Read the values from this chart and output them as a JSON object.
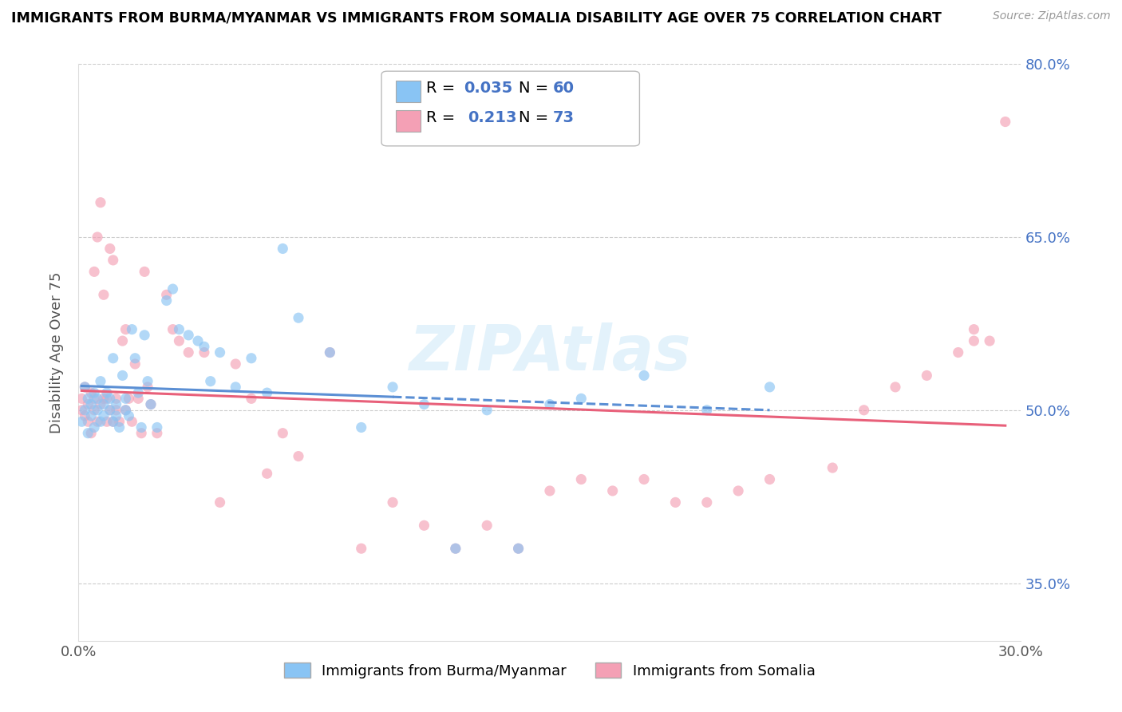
{
  "title": "IMMIGRANTS FROM BURMA/MYANMAR VS IMMIGRANTS FROM SOMALIA DISABILITY AGE OVER 75 CORRELATION CHART",
  "source": "Source: ZipAtlas.com",
  "ylabel": "Disability Age Over 75",
  "xlim": [
    0.0,
    0.3
  ],
  "ylim": [
    0.3,
    0.8
  ],
  "watermark": "ZIPAtlas",
  "legend_label1": "Immigrants from Burma/Myanmar",
  "legend_label2": "Immigrants from Somalia",
  "blue_color": "#89C4F4",
  "pink_color": "#F4A0B5",
  "blue_line_color": "#5B8FD4",
  "pink_line_color": "#E8607A",
  "scatter_alpha": 0.65,
  "scatter_size": 90,
  "blue_scatter_x": [
    0.001,
    0.002,
    0.002,
    0.003,
    0.003,
    0.004,
    0.004,
    0.005,
    0.005,
    0.006,
    0.006,
    0.007,
    0.007,
    0.008,
    0.008,
    0.009,
    0.01,
    0.01,
    0.011,
    0.011,
    0.012,
    0.012,
    0.013,
    0.014,
    0.015,
    0.015,
    0.016,
    0.017,
    0.018,
    0.019,
    0.02,
    0.021,
    0.022,
    0.023,
    0.025,
    0.028,
    0.03,
    0.032,
    0.035,
    0.038,
    0.04,
    0.042,
    0.045,
    0.05,
    0.055,
    0.06,
    0.065,
    0.07,
    0.08,
    0.09,
    0.1,
    0.11,
    0.12,
    0.13,
    0.14,
    0.15,
    0.16,
    0.18,
    0.2,
    0.22
  ],
  "blue_scatter_y": [
    0.49,
    0.5,
    0.52,
    0.51,
    0.48,
    0.495,
    0.505,
    0.515,
    0.485,
    0.5,
    0.51,
    0.49,
    0.525,
    0.505,
    0.495,
    0.515,
    0.5,
    0.51,
    0.545,
    0.49,
    0.495,
    0.505,
    0.485,
    0.53,
    0.5,
    0.51,
    0.495,
    0.57,
    0.545,
    0.515,
    0.485,
    0.565,
    0.525,
    0.505,
    0.485,
    0.595,
    0.605,
    0.57,
    0.565,
    0.56,
    0.555,
    0.525,
    0.55,
    0.52,
    0.545,
    0.515,
    0.64,
    0.58,
    0.55,
    0.485,
    0.52,
    0.505,
    0.38,
    0.5,
    0.38,
    0.505,
    0.51,
    0.53,
    0.5,
    0.52
  ],
  "pink_scatter_x": [
    0.001,
    0.001,
    0.002,
    0.002,
    0.003,
    0.003,
    0.004,
    0.004,
    0.005,
    0.005,
    0.005,
    0.006,
    0.006,
    0.007,
    0.007,
    0.008,
    0.008,
    0.009,
    0.009,
    0.01,
    0.01,
    0.011,
    0.011,
    0.012,
    0.012,
    0.013,
    0.014,
    0.015,
    0.015,
    0.016,
    0.017,
    0.018,
    0.019,
    0.02,
    0.021,
    0.022,
    0.023,
    0.025,
    0.028,
    0.03,
    0.032,
    0.035,
    0.04,
    0.045,
    0.05,
    0.055,
    0.06,
    0.065,
    0.07,
    0.08,
    0.09,
    0.1,
    0.11,
    0.12,
    0.13,
    0.14,
    0.15,
    0.16,
    0.17,
    0.18,
    0.19,
    0.2,
    0.21,
    0.22,
    0.24,
    0.25,
    0.26,
    0.27,
    0.28,
    0.285,
    0.29,
    0.285,
    0.295
  ],
  "pink_scatter_y": [
    0.5,
    0.51,
    0.495,
    0.52,
    0.505,
    0.49,
    0.515,
    0.48,
    0.5,
    0.51,
    0.62,
    0.49,
    0.65,
    0.505,
    0.68,
    0.51,
    0.6,
    0.49,
    0.51,
    0.5,
    0.64,
    0.49,
    0.63,
    0.51,
    0.5,
    0.49,
    0.56,
    0.5,
    0.57,
    0.51,
    0.49,
    0.54,
    0.51,
    0.48,
    0.62,
    0.52,
    0.505,
    0.48,
    0.6,
    0.57,
    0.56,
    0.55,
    0.55,
    0.42,
    0.54,
    0.51,
    0.445,
    0.48,
    0.46,
    0.55,
    0.38,
    0.42,
    0.4,
    0.38,
    0.4,
    0.38,
    0.43,
    0.44,
    0.43,
    0.44,
    0.42,
    0.42,
    0.43,
    0.44,
    0.45,
    0.5,
    0.52,
    0.53,
    0.55,
    0.56,
    0.56,
    0.57,
    0.75
  ]
}
